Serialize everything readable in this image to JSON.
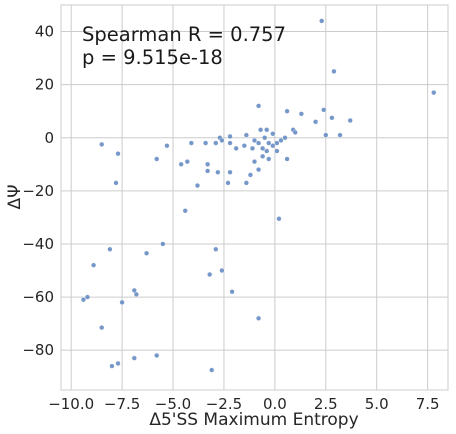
{
  "chart_data": {
    "type": "scatter",
    "title": "",
    "xlabel": "Δ5'SS Maximum Entropy",
    "ylabel": "ΔΨ",
    "xlim": [
      -10.5,
      8.5
    ],
    "ylim": [
      -95,
      50
    ],
    "xticks": [
      -10.0,
      -7.5,
      -5.0,
      -2.5,
      0.0,
      2.5,
      5.0,
      7.5
    ],
    "xtick_labels": [
      "−10.0",
      "−7.5",
      "−5.0",
      "−2.5",
      "0.0",
      "2.5",
      "5.0",
      "7.5"
    ],
    "yticks": [
      40,
      20,
      0,
      -20,
      -40,
      -60,
      -80
    ],
    "ytick_labels": [
      "40",
      "20",
      "0",
      "−20",
      "−40",
      "−60",
      "−80"
    ],
    "grid": true,
    "style": "whitegrid",
    "point_color": "#5e86c0",
    "annotations": [
      "Spearman R = 0.757",
      "p = 9.515e-18"
    ],
    "points": [
      [
        2.3,
        44
      ],
      [
        2.9,
        25
      ],
      [
        7.8,
        17
      ],
      [
        3.7,
        6.5
      ],
      [
        -2.2,
        0.5
      ],
      [
        -0.8,
        12
      ],
      [
        0.6,
        10
      ],
      [
        1.3,
        9
      ],
      [
        2.4,
        10.5
      ],
      [
        2.8,
        7.5
      ],
      [
        2.0,
        6
      ],
      [
        0.9,
        3
      ],
      [
        1.0,
        2
      ],
      [
        -0.7,
        3
      ],
      [
        -0.4,
        3
      ],
      [
        -0.1,
        1.5
      ],
      [
        3.2,
        1
      ],
      [
        2.5,
        1
      ],
      [
        -2.7,
        0
      ],
      [
        -1.4,
        1
      ],
      [
        -1.0,
        -1
      ],
      [
        -0.5,
        0
      ],
      [
        -0.3,
        -2
      ],
      [
        0.5,
        0
      ],
      [
        0.3,
        -1
      ],
      [
        0.1,
        -2
      ],
      [
        -0.1,
        -3
      ],
      [
        -0.6,
        -4
      ],
      [
        -0.8,
        -2
      ],
      [
        -1.1,
        -4
      ],
      [
        -1.5,
        -3
      ],
      [
        -1.9,
        -4
      ],
      [
        -2.2,
        -2
      ],
      [
        -2.6,
        -1
      ],
      [
        -2.9,
        -2
      ],
      [
        -3.4,
        -2
      ],
      [
        -4.1,
        -2
      ],
      [
        -4.3,
        -9
      ],
      [
        -4.6,
        -10
      ],
      [
        -5.3,
        -3
      ],
      [
        -5.8,
        -8
      ],
      [
        -7.7,
        -6
      ],
      [
        -8.5,
        -2.5
      ],
      [
        -3.3,
        -10
      ],
      [
        -3.3,
        -12.5
      ],
      [
        -2.8,
        -13
      ],
      [
        -2.2,
        -13
      ],
      [
        -2.3,
        -17
      ],
      [
        -1.4,
        -17
      ],
      [
        -1.0,
        -9
      ],
      [
        -0.6,
        -7
      ],
      [
        -0.3,
        -8
      ],
      [
        0.6,
        -8
      ],
      [
        0.1,
        -5
      ],
      [
        -0.4,
        -5
      ],
      [
        -0.8,
        -12
      ],
      [
        -1.2,
        -14
      ],
      [
        -3.8,
        -18
      ],
      [
        -7.8,
        -17
      ],
      [
        -4.4,
        -27.5
      ],
      [
        0.2,
        -30.5
      ],
      [
        -5.5,
        -40
      ],
      [
        -8.1,
        -42
      ],
      [
        -2.9,
        -42
      ],
      [
        -6.3,
        -43.5
      ],
      [
        -8.9,
        -48
      ],
      [
        -2.6,
        -50
      ],
      [
        -3.2,
        -51.5
      ],
      [
        -6.9,
        -57.5
      ],
      [
        -6.8,
        -59
      ],
      [
        -2.1,
        -58
      ],
      [
        -9.2,
        -60
      ],
      [
        -9.4,
        -61
      ],
      [
        -7.5,
        -62
      ],
      [
        -8.5,
        -71.5
      ],
      [
        -0.8,
        -68
      ],
      [
        -5.8,
        -82
      ],
      [
        -6.9,
        -83
      ],
      [
        -7.7,
        -85
      ],
      [
        -8.0,
        -86
      ],
      [
        -3.1,
        -87.5
      ]
    ]
  }
}
